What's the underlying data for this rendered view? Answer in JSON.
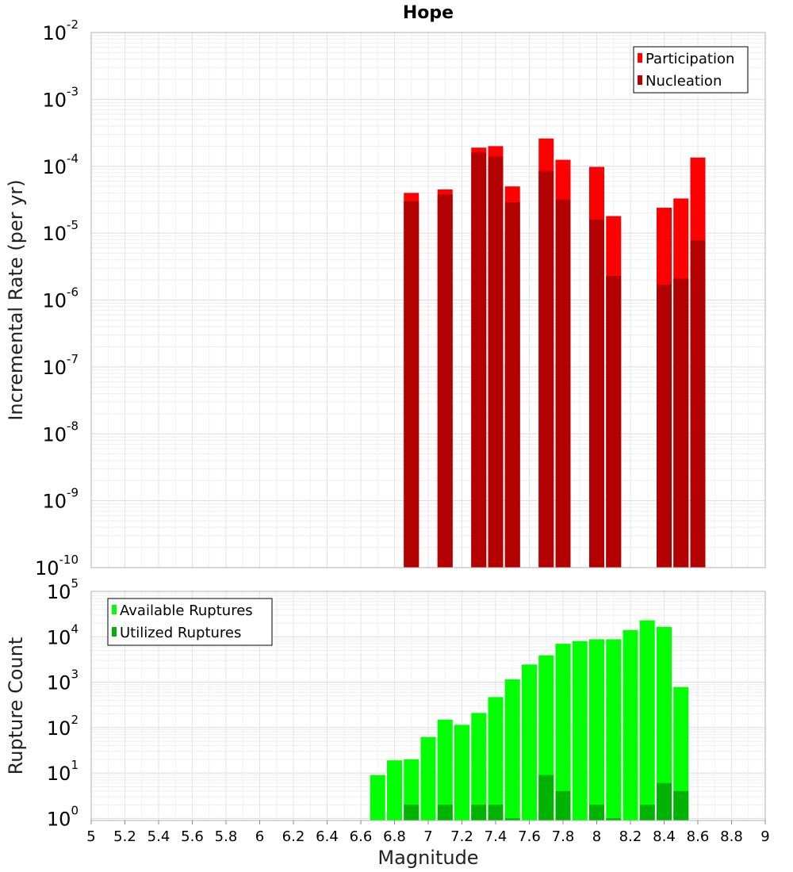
{
  "title": "Hope",
  "chart_data": [
    {
      "type": "bar",
      "title": "Hope",
      "ylabel": "Incremental Rate (per yr)",
      "xlabel": "Magnitude",
      "y_scale": "log",
      "ylim": [
        1e-10,
        0.01
      ],
      "xlim": [
        5,
        9
      ],
      "y_tick_exponents": [
        "-2",
        "-3",
        "-4",
        "-5",
        "-6",
        "-7",
        "-8",
        "-9",
        "-10"
      ],
      "y_tick_base": "10",
      "legend_position": "top-right",
      "grid": true,
      "series": [
        {
          "name": "Participation",
          "color": "#ff0000",
          "x": [
            6.9,
            7.1,
            7.3,
            7.4,
            7.5,
            7.7,
            7.8,
            8.0,
            8.1,
            8.4,
            8.5,
            8.6
          ],
          "values": [
            4e-05,
            4.5e-05,
            0.00019,
            0.0002,
            5e-05,
            0.00026,
            0.000125,
            9.8e-05,
            1.8e-05,
            2.4e-05,
            3.3e-05,
            0.000135
          ]
        },
        {
          "name": "Nucleation",
          "color": "#b30000",
          "x": [
            6.9,
            7.1,
            7.3,
            7.4,
            7.5,
            7.7,
            7.8,
            8.0,
            8.1,
            8.4,
            8.5,
            8.6
          ],
          "values": [
            3e-05,
            3.8e-05,
            0.00016,
            0.00014,
            2.9e-05,
            8.5e-05,
            3.2e-05,
            1.6e-05,
            2.3e-06,
            1.7e-06,
            2.1e-06,
            7.8e-06
          ]
        }
      ]
    },
    {
      "type": "bar",
      "ylabel": "Rupture Count",
      "xlabel": "Magnitude",
      "y_scale": "log",
      "ylim": [
        0.9,
        100000
      ],
      "xlim": [
        5,
        9
      ],
      "y_tick_exponents": [
        "5",
        "4",
        "3",
        "2",
        "1",
        "0"
      ],
      "y_tick_base": "10",
      "x_tick_labels": [
        "5",
        "5.2",
        "5.4",
        "5.6",
        "5.8",
        "6",
        "6.2",
        "6.4",
        "6.6",
        "6.8",
        "7",
        "7.2",
        "7.4",
        "7.6",
        "7.8",
        "8",
        "8.2",
        "8.4",
        "8.6",
        "8.8",
        "9"
      ],
      "legend_position": "top-left",
      "grid": true,
      "series": [
        {
          "name": "Available Ruptures",
          "color": "#00ff00",
          "x": [
            6.7,
            6.8,
            6.9,
            7.0,
            7.1,
            7.2,
            7.3,
            7.4,
            7.5,
            7.6,
            7.7,
            7.8,
            7.9,
            8.0,
            8.1,
            8.2,
            8.3,
            8.4,
            8.5
          ],
          "values": [
            9,
            19,
            20,
            62,
            150,
            115,
            210,
            470,
            1150,
            2450,
            3900,
            7000,
            8000,
            8800,
            8800,
            14000,
            23000,
            16500,
            780
          ]
        },
        {
          "name": "Utilized Ruptures",
          "color": "#00b300",
          "x": [
            6.9,
            7.1,
            7.3,
            7.4,
            7.5,
            7.7,
            7.8,
            8.0,
            8.1,
            8.3,
            8.4,
            8.5
          ],
          "values": [
            2,
            2,
            2,
            2,
            1,
            9,
            4,
            2,
            1,
            2,
            6,
            4
          ]
        }
      ]
    }
  ]
}
